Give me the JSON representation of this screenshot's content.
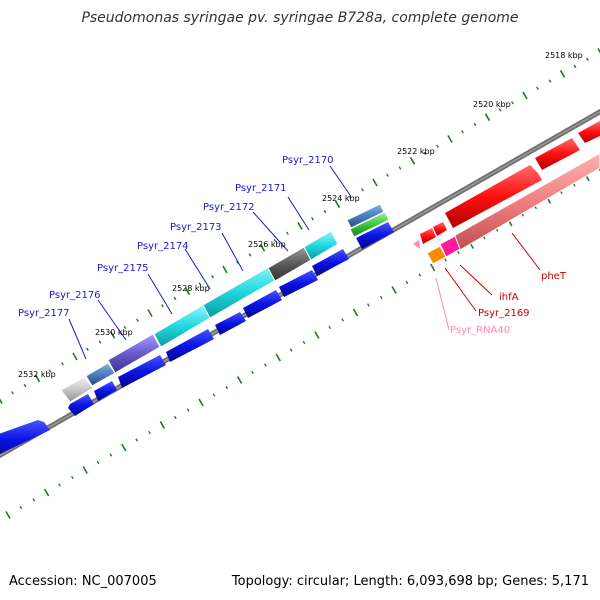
{
  "title": "Pseudomonas syringae pv. syringae B728a, complete genome",
  "footer": {
    "accession": "Accession: NC_007005",
    "topology": "Topology: circular; Length: 6,093,698 bp; Genes: 5,171"
  },
  "ticks": {
    "t2518": "2518 kbp",
    "t2520": "2520 kbp",
    "t2522": "2522 kbp",
    "t2524": "2524 kbp",
    "t2526": "2526 kbp",
    "t2528": "2528 kbp",
    "t2530": "2530 kbp",
    "t2532": "2532 kbp"
  },
  "gene_labels": {
    "psyr_2170": "Psyr_2170",
    "psyr_2171": "Psyr_2171",
    "psyr_2172": "Psyr_2172",
    "psyr_2173": "Psyr_2173",
    "psyr_2174": "Psyr_2174",
    "psyr_2175": "Psyr_2175",
    "psyr_2176": "Psyr_2176",
    "psyr_2177": "Psyr_2177",
    "phet": "pheT",
    "ihfa": "ihfA",
    "psyr_2169": "Psyr_2169",
    "psyr_rna40": "Psyr_RNA40"
  },
  "colors": {
    "blue_label": "#1a1acc",
    "red_label": "#cc0000",
    "pink_label": "#ff88bb",
    "cds_blue": "#0a14e6",
    "cds_red": "#ff1a1a",
    "cds_pink": "#f08080",
    "cyan": "#22d8e0",
    "tick_green": "#1f7a1f",
    "backbone": "#777777"
  }
}
